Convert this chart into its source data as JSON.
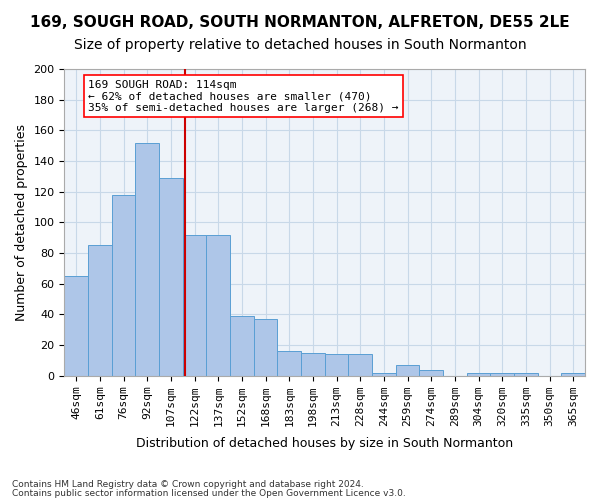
{
  "title1": "169, SOUGH ROAD, SOUTH NORMANTON, ALFRETON, DE55 2LE",
  "title2": "Size of property relative to detached houses in South Normanton",
  "xlabel": "Distribution of detached houses by size in South Normanton",
  "ylabel": "Number of detached properties",
  "footer1": "Contains HM Land Registry data © Crown copyright and database right 2024.",
  "footer2": "Contains public sector information licensed under the Open Government Licence v3.0.",
  "annotation_line1": "169 SOUGH ROAD: 114sqm",
  "annotation_line2": "← 62% of detached houses are smaller (470)",
  "annotation_line3": "35% of semi-detached houses are larger (268) →",
  "bar_values": [
    65,
    85,
    118,
    152,
    129,
    92,
    92,
    39,
    37,
    16,
    15,
    14,
    14,
    2,
    7,
    4,
    0,
    2,
    2,
    2,
    0,
    2
  ],
  "bin_labels": [
    "46sqm",
    "61sqm",
    "76sqm",
    "92sqm",
    "107sqm",
    "122sqm",
    "137sqm",
    "152sqm",
    "168sqm",
    "183sqm",
    "198sqm",
    "213sqm",
    "228sqm",
    "244sqm",
    "259sqm",
    "274sqm",
    "289sqm",
    "304sqm",
    "320sqm",
    "335sqm",
    "350sqm",
    "365sqm"
  ],
  "bar_color": "#aec6e8",
  "bar_edge_color": "#5a9fd4",
  "grid_color": "#c8d8e8",
  "bg_color": "#eef3f9",
  "vline_x": 4.6,
  "vline_color": "#cc0000",
  "ylim": [
    0,
    200
  ],
  "yticks": [
    0,
    20,
    40,
    60,
    80,
    100,
    120,
    140,
    160,
    180,
    200
  ],
  "title1_fontsize": 11,
  "title2_fontsize": 10,
  "ylabel_fontsize": 9,
  "xlabel_fontsize": 9,
  "tick_fontsize": 8,
  "annotation_fontsize": 8
}
